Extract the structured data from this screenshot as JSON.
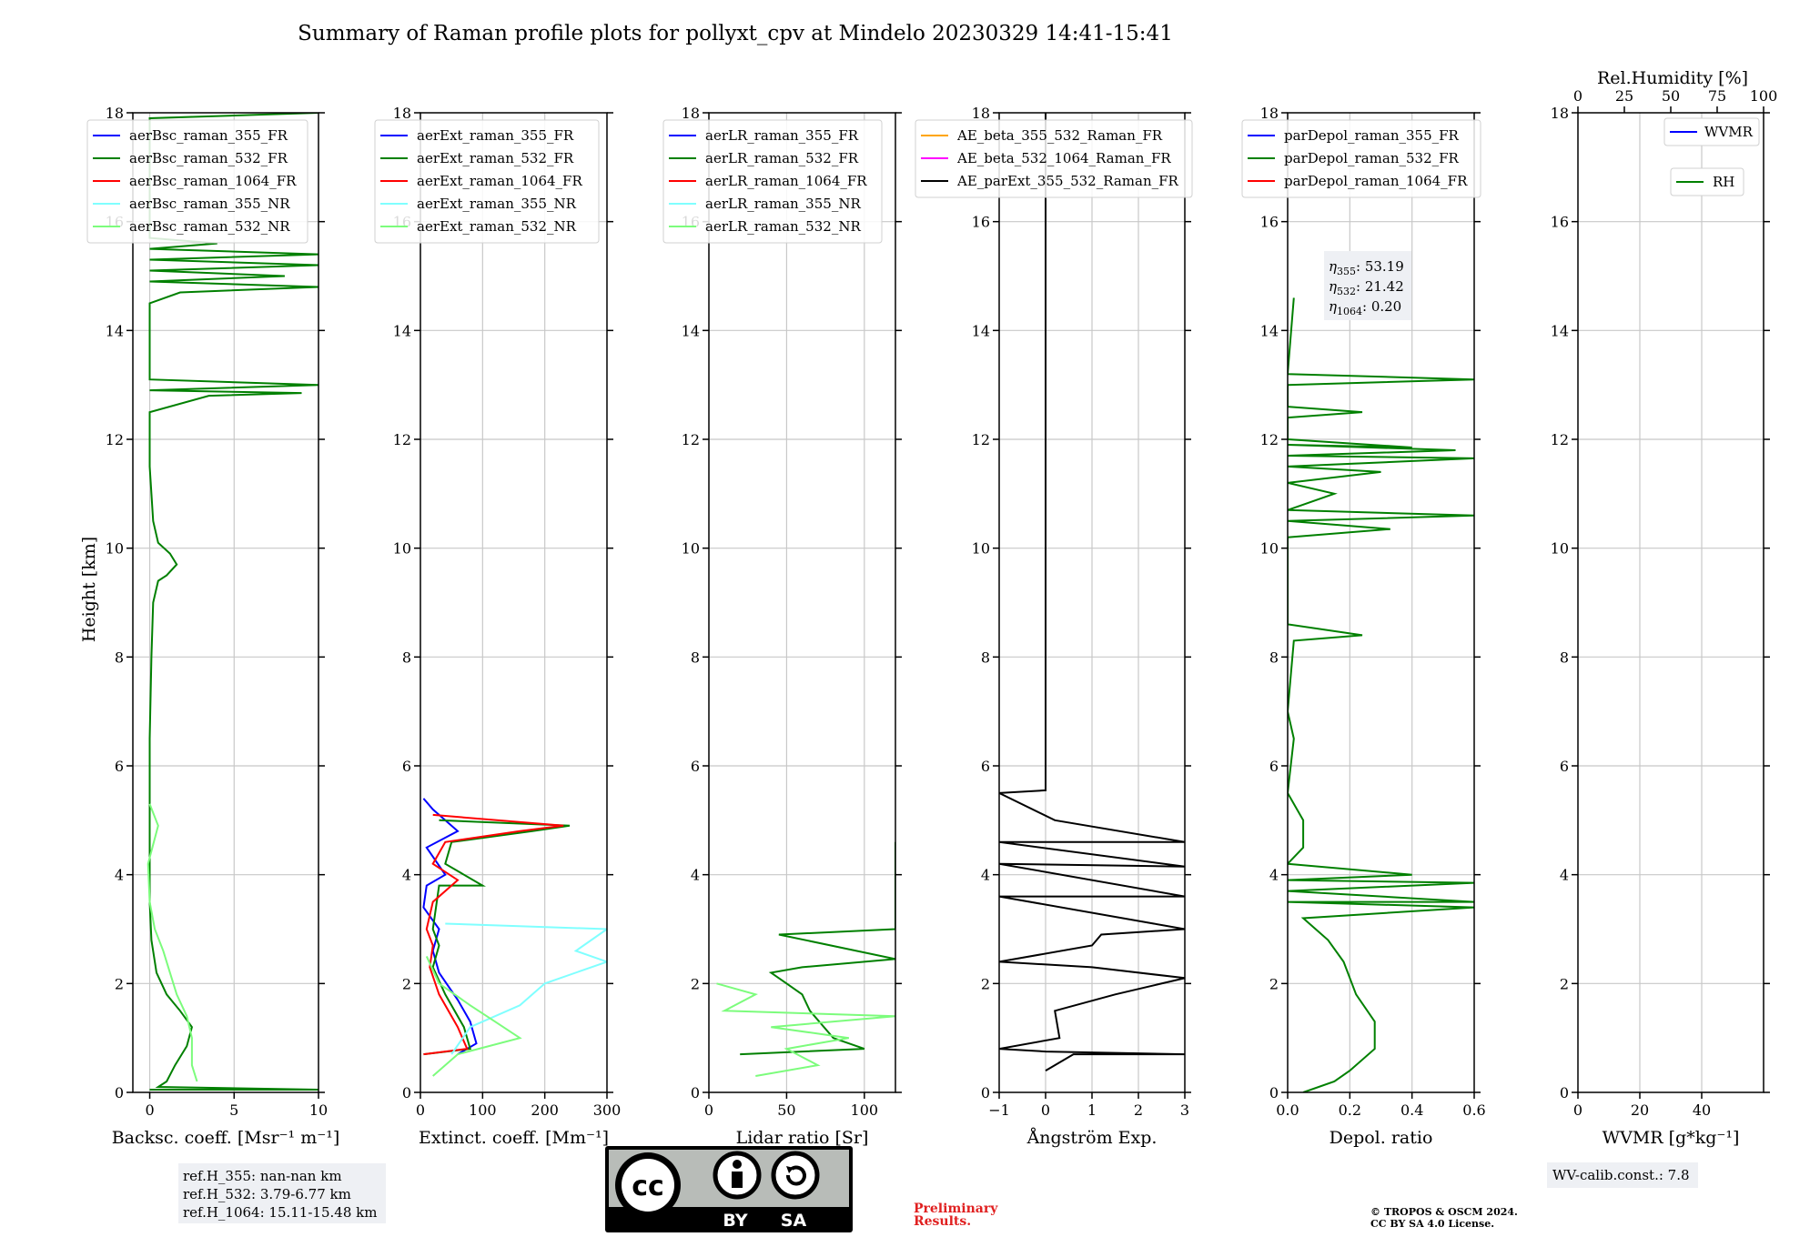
{
  "title": "Summary of Raman profile plots for pollyxt_cpv at Mindelo 20230329 14:41-15:41",
  "ylabel": "Height [km]",
  "y_ticks": [
    0,
    2,
    4,
    6,
    8,
    10,
    12,
    14,
    16,
    18
  ],
  "chart_data": [
    {
      "type": "line",
      "xlabel": "Backsc. coeff. [Msr⁻¹ m⁻¹]",
      "xlim": [
        -1,
        10
      ],
      "ylim": [
        0,
        18
      ],
      "x_ticks": [
        0,
        5,
        10
      ],
      "grid": true,
      "legend_position": "upper-left",
      "series": [
        {
          "name": "aerBsc_raman_355_FR",
          "color": "#0000ff",
          "points": []
        },
        {
          "name": "aerBsc_raman_532_FR",
          "color": "#008000",
          "points": [
            [
              0.0,
              0.05
            ],
            [
              10.0,
              0.05
            ],
            [
              0.5,
              0.1
            ],
            [
              1.0,
              0.2
            ],
            [
              1.5,
              0.5
            ],
            [
              2.2,
              0.85
            ],
            [
              2.5,
              1.2
            ],
            [
              1.8,
              1.5
            ],
            [
              1.0,
              1.8
            ],
            [
              0.4,
              2.2
            ],
            [
              0.1,
              2.8
            ],
            [
              0.0,
              3.5
            ],
            [
              0.0,
              5.0
            ],
            [
              0.0,
              6.5
            ],
            [
              0.1,
              8.0
            ],
            [
              0.2,
              9.0
            ],
            [
              0.5,
              9.4
            ],
            [
              1.0,
              9.5
            ],
            [
              1.6,
              9.7
            ],
            [
              1.2,
              9.9
            ],
            [
              0.5,
              10.1
            ],
            [
              0.2,
              10.5
            ],
            [
              0.0,
              11.5
            ],
            [
              0.0,
              12.5
            ],
            [
              3.5,
              12.8
            ],
            [
              9.0,
              12.85
            ],
            [
              0.0,
              12.9
            ],
            [
              10.0,
              13.0
            ],
            [
              0.0,
              13.1
            ],
            [
              0.0,
              14.5
            ],
            [
              1.8,
              14.7
            ],
            [
              10.0,
              14.8
            ],
            [
              0.0,
              14.9
            ],
            [
              8.0,
              15.0
            ],
            [
              0.0,
              15.1
            ],
            [
              10.0,
              15.2
            ],
            [
              0.0,
              15.3
            ],
            [
              10.0,
              15.4
            ],
            [
              0.0,
              15.5
            ],
            [
              4.0,
              15.6
            ],
            [
              0.0,
              15.7
            ],
            [
              0.0,
              16.5
            ],
            [
              0.0,
              17.9
            ],
            [
              10.0,
              18.0
            ]
          ]
        },
        {
          "name": "aerBsc_raman_1064_FR",
          "color": "#ff0000",
          "points": []
        },
        {
          "name": "aerBsc_raman_355_NR",
          "color": "#80ffff",
          "points": []
        },
        {
          "name": "aerBsc_raman_532_NR",
          "color": "#7cfc7c",
          "points": [
            [
              2.8,
              0.2
            ],
            [
              2.5,
              0.5
            ],
            [
              2.5,
              1.0
            ],
            [
              2.2,
              1.4
            ],
            [
              1.6,
              1.8
            ],
            [
              1.2,
              2.2
            ],
            [
              0.8,
              2.6
            ],
            [
              0.3,
              3.0
            ],
            [
              0.0,
              3.5
            ],
            [
              -0.1,
              4.2
            ],
            [
              0.5,
              4.9
            ],
            [
              0.0,
              5.3
            ]
          ]
        }
      ]
    },
    {
      "type": "line",
      "xlabel": "Extinct. coeff. [Mm⁻¹]",
      "xlim": [
        0,
        300
      ],
      "ylim": [
        0,
        18
      ],
      "x_ticks": [
        0,
        100,
        200,
        300
      ],
      "grid": true,
      "legend_position": "upper-left",
      "series": [
        {
          "name": "aerExt_raman_355_FR",
          "color": "#0000ff",
          "points": [
            [
              60,
              0.7
            ],
            [
              90,
              0.9
            ],
            [
              80,
              1.3
            ],
            [
              60,
              1.7
            ],
            [
              30,
              2.2
            ],
            [
              20,
              2.6
            ],
            [
              30,
              3.0
            ],
            [
              5,
              3.4
            ],
            [
              10,
              3.8
            ],
            [
              40,
              4.0
            ],
            [
              10,
              4.5
            ],
            [
              60,
              4.8
            ],
            [
              20,
              5.2
            ],
            [
              5,
              5.4
            ]
          ]
        },
        {
          "name": "aerExt_raman_532_FR",
          "color": "#008000",
          "points": [
            [
              5,
              0.7
            ],
            [
              80,
              0.8
            ],
            [
              70,
              1.2
            ],
            [
              40,
              1.8
            ],
            [
              20,
              2.3
            ],
            [
              30,
              2.7
            ],
            [
              20,
              3.0
            ],
            [
              30,
              3.8
            ],
            [
              100,
              3.8
            ],
            [
              40,
              4.2
            ],
            [
              50,
              4.6
            ],
            [
              180,
              4.8
            ],
            [
              240,
              4.9
            ],
            [
              30,
              5.0
            ]
          ]
        },
        {
          "name": "aerExt_raman_1064_FR",
          "color": "#ff0000",
          "points": [
            [
              5,
              0.7
            ],
            [
              75,
              0.8
            ],
            [
              60,
              1.2
            ],
            [
              30,
              1.8
            ],
            [
              15,
              2.3
            ],
            [
              20,
              2.7
            ],
            [
              10,
              3.0
            ],
            [
              20,
              3.5
            ],
            [
              60,
              3.9
            ],
            [
              20,
              4.2
            ],
            [
              40,
              4.6
            ],
            [
              160,
              4.8
            ],
            [
              230,
              4.9
            ],
            [
              20,
              5.1
            ]
          ]
        },
        {
          "name": "aerExt_raman_355_NR",
          "color": "#80ffff",
          "points": [
            [
              50,
              0.7
            ],
            [
              80,
              1.2
            ],
            [
              160,
              1.6
            ],
            [
              200,
              2.0
            ],
            [
              300,
              2.4
            ],
            [
              250,
              2.6
            ],
            [
              300,
              3.0
            ],
            [
              40,
              3.1
            ]
          ]
        },
        {
          "name": "aerExt_raman_532_NR",
          "color": "#7cfc7c",
          "points": [
            [
              20,
              0.3
            ],
            [
              60,
              0.7
            ],
            [
              160,
              1.0
            ],
            [
              120,
              1.3
            ],
            [
              80,
              1.6
            ],
            [
              30,
              2.0
            ],
            [
              10,
              2.5
            ]
          ]
        }
      ]
    },
    {
      "type": "line",
      "xlabel": "Lidar ratio [Sr]",
      "xlim": [
        0,
        120
      ],
      "ylim": [
        0,
        18
      ],
      "x_ticks": [
        0,
        50,
        100
      ],
      "grid": true,
      "legend_position": "upper-left",
      "series": [
        {
          "name": "aerLR_raman_355_FR",
          "color": "#0000ff",
          "points": []
        },
        {
          "name": "aerLR_raman_532_FR",
          "color": "#008000",
          "points": [
            [
              20,
              0.7
            ],
            [
              100,
              0.8
            ],
            [
              80,
              1.0
            ],
            [
              65,
              1.5
            ],
            [
              60,
              1.8
            ],
            [
              50,
              2.0
            ],
            [
              40,
              2.2
            ],
            [
              60,
              2.3
            ],
            [
              120,
              2.45
            ],
            [
              45,
              2.9
            ],
            [
              120,
              3.0
            ],
            [
              120,
              3.2
            ],
            [
              120,
              3.4
            ],
            [
              120,
              3.6
            ],
            [
              120,
              4.1
            ],
            [
              120,
              4.6
            ]
          ]
        },
        {
          "name": "aerLR_raman_1064_FR",
          "color": "#ff0000",
          "points": []
        },
        {
          "name": "aerLR_raman_355_NR",
          "color": "#80ffff",
          "points": []
        },
        {
          "name": "aerLR_raman_532_NR",
          "color": "#7cfc7c",
          "points": [
            [
              30,
              0.3
            ],
            [
              70,
              0.5
            ],
            [
              50,
              0.8
            ],
            [
              90,
              1.0
            ],
            [
              40,
              1.2
            ],
            [
              120,
              1.4
            ],
            [
              10,
              1.5
            ],
            [
              30,
              1.8
            ],
            [
              5,
              2.0
            ]
          ]
        }
      ]
    },
    {
      "type": "line",
      "xlabel": "Ångström Exp.",
      "xlim": [
        -1,
        3
      ],
      "ylim": [
        0,
        18
      ],
      "x_ticks": [
        -1,
        0,
        1,
        2,
        3
      ],
      "grid": true,
      "legend_position": "upper-left",
      "series": [
        {
          "name": "AE_beta_355_532_Raman_FR",
          "color": "#ffa500",
          "points": []
        },
        {
          "name": "AE_beta_532_1064_Raman_FR",
          "color": "#ff00ff",
          "points": []
        },
        {
          "name": "AE_parExt_355_532_Raman_FR",
          "color": "#000000",
          "points": [
            [
              0.0,
              0.4
            ],
            [
              0.6,
              0.7
            ],
            [
              3.0,
              0.7
            ],
            [
              0.0,
              0.75
            ],
            [
              -1.0,
              0.8
            ],
            [
              0.3,
              1.0
            ],
            [
              0.2,
              1.5
            ],
            [
              1.5,
              1.8
            ],
            [
              2.0,
              1.9
            ],
            [
              3.0,
              2.1
            ],
            [
              1.0,
              2.3
            ],
            [
              -1.0,
              2.4
            ],
            [
              1.0,
              2.7
            ],
            [
              1.2,
              2.9
            ],
            [
              3.0,
              3.0
            ],
            [
              -1.0,
              3.6
            ],
            [
              3.0,
              3.6
            ],
            [
              -1.0,
              4.2
            ],
            [
              3.0,
              4.15
            ],
            [
              -1.0,
              4.6
            ],
            [
              3.0,
              4.6
            ],
            [
              0.2,
              5.0
            ],
            [
              -1.0,
              5.5
            ],
            [
              0.0,
              5.55
            ],
            [
              0.0,
              18.0
            ]
          ]
        }
      ]
    },
    {
      "type": "line",
      "xlabel": "Depol. ratio",
      "xlim": [
        0,
        0.6
      ],
      "ylim": [
        0,
        18
      ],
      "x_ticks": [
        0.0,
        0.2,
        0.4,
        0.6
      ],
      "grid": true,
      "legend_position": "upper-left",
      "annotations": [
        {
          "label": "η",
          "sub": "355",
          "value": ": 53.19"
        },
        {
          "label": "η",
          "sub": "532",
          "value": ": 21.42"
        },
        {
          "label": "η",
          "sub": "1064",
          "value": ": 0.20"
        }
      ],
      "series": [
        {
          "name": "parDepol_raman_355_FR",
          "color": "#0000ff",
          "points": []
        },
        {
          "name": "parDepol_raman_532_FR",
          "color": "#008000",
          "points": [
            [
              0.05,
              0.0
            ],
            [
              0.15,
              0.2
            ],
            [
              0.2,
              0.4
            ],
            [
              0.28,
              0.8
            ],
            [
              0.28,
              1.3
            ],
            [
              0.22,
              1.8
            ],
            [
              0.18,
              2.4
            ],
            [
              0.13,
              2.8
            ],
            [
              0.05,
              3.2
            ],
            [
              0.6,
              3.4
            ],
            [
              0.0,
              3.5
            ],
            [
              0.6,
              3.5
            ],
            [
              0.0,
              3.7
            ],
            [
              0.6,
              3.85
            ],
            [
              0.0,
              3.9
            ],
            [
              0.4,
              4.0
            ],
            [
              0.0,
              4.2
            ],
            [
              0.05,
              4.5
            ],
            [
              0.05,
              5.0
            ],
            [
              0.0,
              5.5
            ],
            [
              0.02,
              6.5
            ],
            [
              0.0,
              7.0
            ],
            [
              0.02,
              8.3
            ],
            [
              0.24,
              8.4
            ],
            [
              0.0,
              8.6
            ],
            [
              0.0,
              9.0
            ],
            [
              0.0,
              10.2
            ],
            [
              0.33,
              10.35
            ],
            [
              0.0,
              10.5
            ],
            [
              0.6,
              10.6
            ],
            [
              0.0,
              10.7
            ],
            [
              0.15,
              11.0
            ],
            [
              0.0,
              11.2
            ],
            [
              0.3,
              11.4
            ],
            [
              0.0,
              11.5
            ],
            [
              0.6,
              11.65
            ],
            [
              0.0,
              11.7
            ],
            [
              0.54,
              11.8
            ],
            [
              0.0,
              11.9
            ],
            [
              0.4,
              11.85
            ],
            [
              0.0,
              12.0
            ],
            [
              0.0,
              12.4
            ],
            [
              0.24,
              12.5
            ],
            [
              0.0,
              12.6
            ],
            [
              0.0,
              13.0
            ],
            [
              0.6,
              13.1
            ],
            [
              0.0,
              13.2
            ],
            [
              0.02,
              14.6
            ]
          ]
        },
        {
          "name": "parDepol_raman_1064_FR",
          "color": "#ff0000",
          "points": []
        }
      ]
    },
    {
      "type": "line",
      "xlabel": "WVMR [g*kg⁻¹]",
      "top_xlabel": "Rel.Humidity [%]",
      "xlim": [
        0,
        60
      ],
      "ylim": [
        0,
        18
      ],
      "x_ticks": [
        0,
        20,
        40
      ],
      "top_x_ticks": [
        0,
        25,
        50,
        75,
        100
      ],
      "grid": true,
      "series": [
        {
          "name": "WVMR",
          "color": "#0000ff",
          "points": []
        },
        {
          "name": "RH",
          "color": "#008000",
          "points": []
        }
      ]
    }
  ],
  "info": {
    "ref_h": [
      "ref.H_355: nan-nan km",
      "ref.H_532: 3.79-6.77 km",
      "ref.H_1064: 15.11-15.48 km"
    ],
    "wv_calib": "WV-calib.const.: 7.8",
    "preliminary": [
      "Preliminary",
      "Results."
    ],
    "copyright": [
      "© TROPOS & OSCM 2024.",
      "CC BY SA 4.0 License."
    ],
    "license_badge": [
      "BY",
      "SA"
    ],
    "license_logo": "cc"
  }
}
